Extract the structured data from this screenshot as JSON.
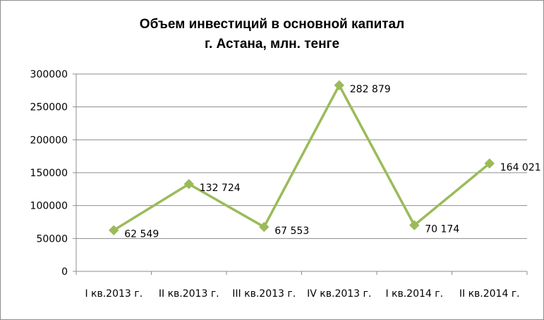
{
  "chart_data": {
    "type": "line",
    "title_lines": [
      "Объем инвестиций в основной капитал",
      "г. Астана, млн. тенге"
    ],
    "categories": [
      "I кв.2013 г.",
      "II кв.2013 г.",
      "III кв.2013 г.",
      "IV кв.2013 г.",
      "I кв.2014 г.",
      "II кв.2014 г."
    ],
    "values": [
      62549,
      132724,
      67553,
      282879,
      70174,
      164021
    ],
    "data_labels": [
      "62 549",
      "132 724",
      "67 553",
      "282 879",
      "70 174",
      "164 021"
    ],
    "y_ticks": [
      "0",
      "50000",
      "100000",
      "150000",
      "200000",
      "250000",
      "300000"
    ],
    "ylim": [
      0,
      300000
    ],
    "y_step": 50000,
    "grid": true,
    "legend": "none",
    "series_color": "#9bbb59",
    "grid_color": "#8c8c8c"
  }
}
